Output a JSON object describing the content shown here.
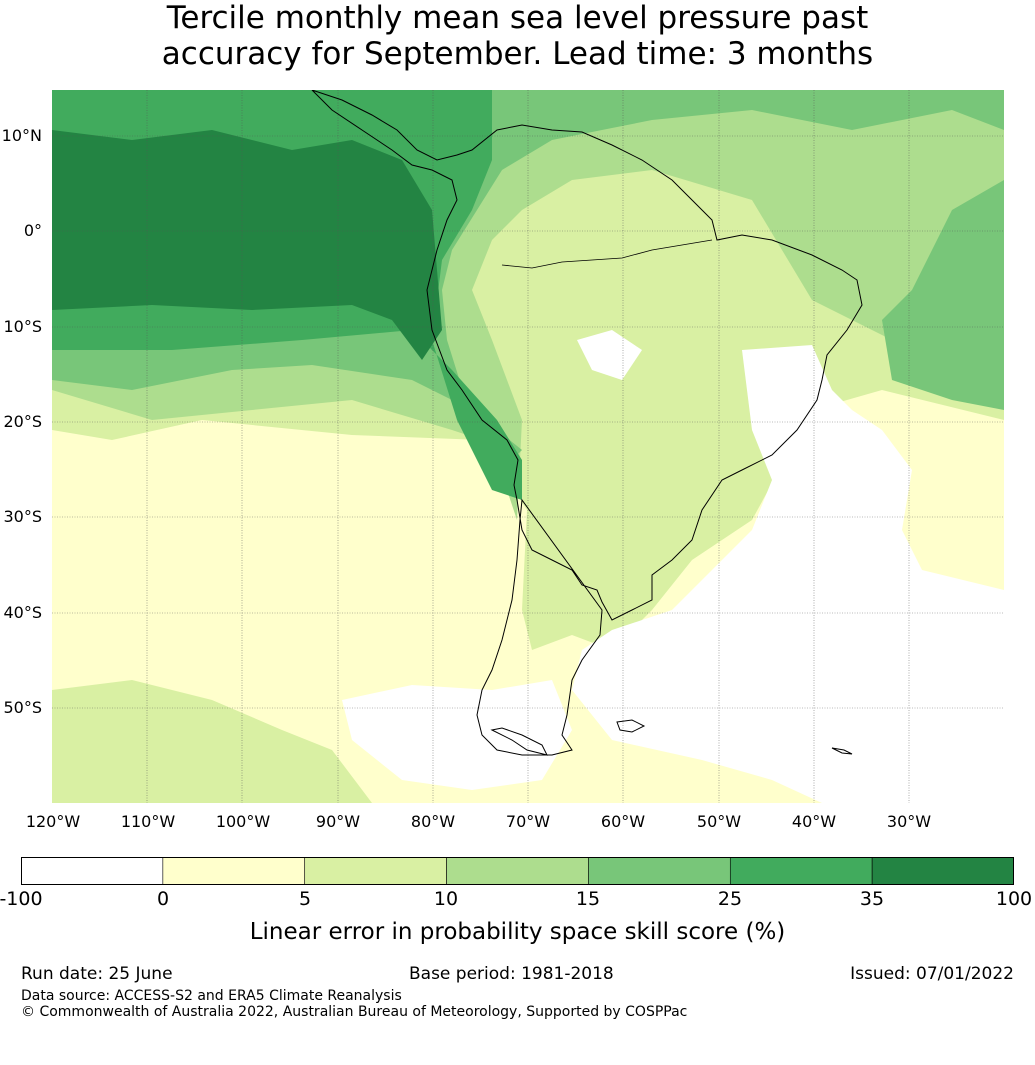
{
  "title_line1": "Tercile monthly mean sea level pressure past",
  "title_line2": "accuracy for September. Lead time: 3 months",
  "map": {
    "region": "South America and surrounding ocean",
    "lat_labels": [
      "10°N",
      "0°",
      "10°S",
      "20°S",
      "30°S",
      "40°S",
      "50°S"
    ],
    "lon_labels": [
      "120°W",
      "110°W",
      "100°W",
      "90°W",
      "80°W",
      "70°W",
      "60°W",
      "50°W",
      "40°W",
      "30°W"
    ],
    "gridlines": true,
    "coastlines": true,
    "ocean_color": "#ffffff",
    "land_color": "#ffffff"
  },
  "colorbar": {
    "label": "Linear error in probability space skill score (%)",
    "ticks": [
      "-100",
      "0",
      "5",
      "10",
      "15",
      "25",
      "35",
      "100"
    ],
    "bins": [
      {
        "from": -100,
        "to": 0,
        "color": "#ffffff"
      },
      {
        "from": 0,
        "to": 5,
        "color": "#ffffcc"
      },
      {
        "from": 5,
        "to": 10,
        "color": "#d9f0a3"
      },
      {
        "from": 10,
        "to": 15,
        "color": "#addd8e"
      },
      {
        "from": 15,
        "to": 25,
        "color": "#78c679"
      },
      {
        "from": 25,
        "to": 35,
        "color": "#41ab5d"
      },
      {
        "from": 35,
        "to": 100,
        "color": "#238443"
      }
    ]
  },
  "footer": {
    "run_date": "Run date: 25 June",
    "base_period": "Base period: 1981-2018",
    "issued": "Issued: 07/01/2022",
    "data_source": "Data source: ACCESS-S2 and ERA5 Climate Reanalysis",
    "copyright": "© Commonwealth of Australia 2022, Australian Bureau of Meteorology, Supported by COSPPac"
  }
}
